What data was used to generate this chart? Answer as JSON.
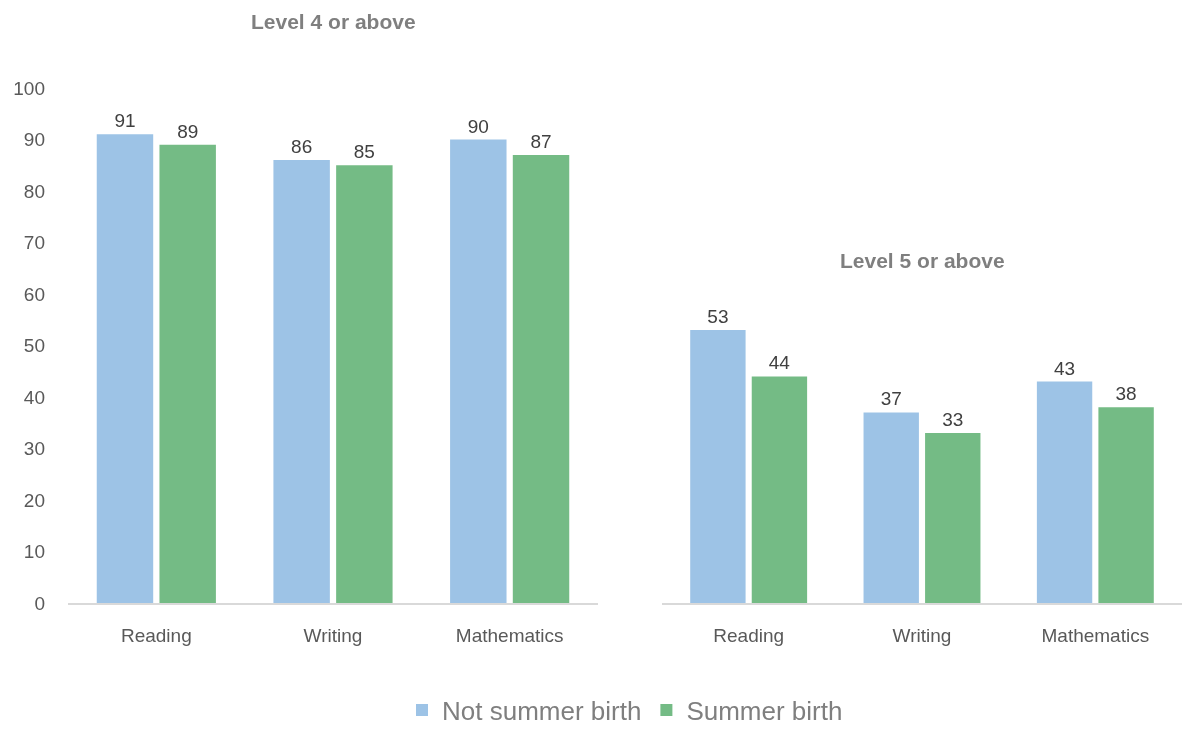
{
  "chart_data": [
    {
      "type": "bar",
      "title": "Level 4 or above",
      "categories": [
        "Reading",
        "Writing",
        "Mathematics"
      ],
      "series": [
        {
          "name": "Not summer birth",
          "color": "#9dc3e6",
          "values": [
            91,
            86,
            90
          ]
        },
        {
          "name": "Summer birth",
          "color": "#74bb85",
          "values": [
            89,
            85,
            87
          ]
        }
      ],
      "ylim": [
        0,
        100
      ],
      "yticks": [
        0,
        10,
        20,
        30,
        40,
        50,
        60,
        70,
        80,
        90,
        100
      ],
      "data_labels": true,
      "legend": "bottom"
    },
    {
      "type": "bar",
      "title": "Level 5 or above",
      "categories": [
        "Reading",
        "Writing",
        "Mathematics"
      ],
      "series": [
        {
          "color": "#9dc3e6",
          "values": [
            53,
            37,
            43
          ]
        },
        {
          "color": "#74bb85",
          "values": [
            44,
            33,
            38
          ]
        }
      ],
      "ylim": [
        0,
        100
      ],
      "data_labels": true,
      "tick_labels": "x"
    }
  ]
}
